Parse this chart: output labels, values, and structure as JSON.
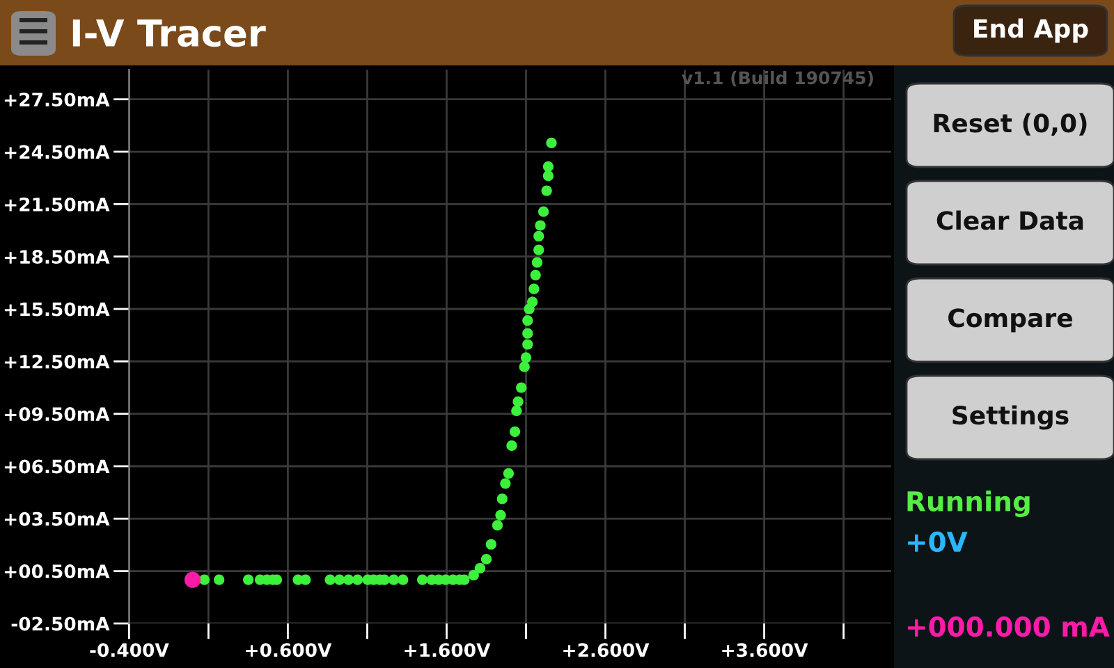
{
  "chart_data": {
    "type": "scatter",
    "title": "I-V Tracer",
    "annotations": [
      "v1.1 (Build 190745)",
      "End App",
      "Reset (0,0)",
      "Clear Data",
      "Compare",
      "Settings",
      "Running",
      "+0V",
      "+000.000 mA"
    ],
    "series": [
      {
        "color": "#3cf03c",
        "x": [
          0.074,
          0.167,
          0.351,
          0.425,
          0.468,
          0.506,
          0.53,
          0.664,
          0.711,
          0.866,
          0.925,
          0.982,
          1.039,
          1.103,
          1.14,
          1.179,
          1.208,
          1.267,
          1.325,
          1.447,
          1.506,
          1.55,
          1.594,
          1.64,
          1.682,
          1.711,
          1.77,
          1.81,
          1.85,
          1.88,
          1.92,
          1.94,
          1.95,
          1.97,
          1.99,
          2.01,
          2.03,
          2.04,
          2.05,
          2.07,
          2.09,
          2.1,
          2.11,
          2.11,
          2.11,
          2.12,
          2.14,
          2.15,
          2.16,
          2.17,
          2.18,
          2.18,
          2.19,
          2.21,
          2.23,
          2.24,
          2.24,
          2.26
        ],
        "values": [
          0,
          0,
          0,
          0,
          0,
          0,
          0,
          0,
          0,
          0,
          0,
          0,
          0,
          0,
          0,
          0,
          0,
          0,
          0,
          0,
          0,
          0,
          0,
          0,
          0,
          0,
          0.26,
          0.66,
          1.18,
          2.03,
          3.12,
          3.7,
          4.63,
          5.51,
          6.09,
          7.68,
          8.48,
          9.67,
          10.2,
          11.0,
          12.19,
          12.72,
          13.47,
          14.1,
          14.84,
          15.5,
          15.9,
          16.65,
          17.44,
          18.16,
          18.88,
          19.67,
          20.28,
          21.07,
          22.27,
          23.12,
          23.65,
          25.0
        ]
      },
      {
        "color": "#ff1aa8",
        "x": [
          0
        ],
        "values": [
          0
        ]
      }
    ],
    "xlim": [
      -0.4,
      4.4
    ],
    "ylim": [
      -2.5,
      29.2
    ],
    "xticks": [
      {
        "value": -0.4,
        "label": "-0.400V"
      },
      {
        "value": 0.1,
        "label": null
      },
      {
        "value": 0.6,
        "label": "+0.600V"
      },
      {
        "value": 1.1,
        "label": null
      },
      {
        "value": 1.6,
        "label": "+1.600V"
      },
      {
        "value": 2.1,
        "label": null
      },
      {
        "value": 2.6,
        "label": "+2.600V"
      },
      {
        "value": 3.1,
        "label": null
      },
      {
        "value": 3.6,
        "label": "+3.600V"
      },
      {
        "value": 4.1,
        "label": null
      }
    ],
    "yticks": [
      {
        "value": -2.5,
        "label": "-02.50mA"
      },
      {
        "value": 0.5,
        "label": "+00.50mA"
      },
      {
        "value": 3.5,
        "label": "+03.50mA"
      },
      {
        "value": 6.5,
        "label": "+06.50mA"
      },
      {
        "value": 9.5,
        "label": "+09.50mA"
      },
      {
        "value": 12.5,
        "label": "+12.50mA"
      },
      {
        "value": 15.5,
        "label": "+15.50mA"
      },
      {
        "value": 18.5,
        "label": "+18.50mA"
      },
      {
        "value": 21.5,
        "label": "+21.50mA"
      },
      {
        "value": 24.5,
        "label": "+24.50mA"
      },
      {
        "value": 27.5,
        "label": "+27.50mA"
      }
    ],
    "grid": true,
    "marker": "circle",
    "legend": false
  }
}
